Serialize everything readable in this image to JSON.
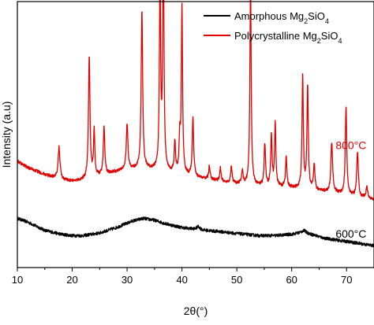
{
  "chart_data": {
    "type": "line",
    "xlabel": "2θ(°)",
    "ylabel": "Intensity (a.u)",
    "xlim": [
      10,
      75
    ],
    "xticks": [
      10,
      20,
      30,
      40,
      50,
      60,
      70
    ],
    "yticks_shown": false,
    "grid": false,
    "legend_position": "top-right",
    "legend": [
      {
        "prefix": "Amorphous Mg",
        "sub1": "2",
        "mid": "SiO",
        "sub2": "4",
        "color": "#000000"
      },
      {
        "prefix": "Polycrystalline Mg",
        "sub1": "2",
        "mid": "SiO",
        "sub2": "4",
        "color": "#e00000"
      }
    ],
    "annotations": [
      {
        "text": "800°C",
        "x": 68.0,
        "y": 0.445,
        "color": "#e00000"
      },
      {
        "text": "600°C",
        "x": 68.0,
        "y": 0.112,
        "color": "#000000"
      }
    ],
    "series": [
      {
        "name": "Amorphous Mg2SiO4",
        "color": "#000000",
        "baseline": [
          [
            10,
            0.185
          ],
          [
            12,
            0.17
          ],
          [
            15,
            0.14
          ],
          [
            18,
            0.125
          ],
          [
            20,
            0.12
          ],
          [
            22,
            0.12
          ],
          [
            25,
            0.13
          ],
          [
            28,
            0.15
          ],
          [
            31,
            0.175
          ],
          [
            33,
            0.185
          ],
          [
            35,
            0.178
          ],
          [
            37,
            0.165
          ],
          [
            40,
            0.15
          ],
          [
            42,
            0.145
          ],
          [
            44,
            0.14
          ],
          [
            47,
            0.135
          ],
          [
            50,
            0.128
          ],
          [
            54,
            0.12
          ],
          [
            57,
            0.12
          ],
          [
            60,
            0.125
          ],
          [
            62,
            0.132
          ],
          [
            64,
            0.122
          ],
          [
            66,
            0.11
          ],
          [
            70,
            0.098
          ],
          [
            75,
            0.082
          ]
        ],
        "peaks": [
          [
            43.0,
            0.012,
            0.35
          ],
          [
            62.3,
            0.008,
            0.5
          ]
        ]
      },
      {
        "name": "Polycrystalline Mg2SiO4",
        "color": "#e00000",
        "baseline": [
          [
            10,
            0.4
          ],
          [
            12,
            0.375
          ],
          [
            15,
            0.35
          ],
          [
            18,
            0.33
          ],
          [
            20,
            0.325
          ],
          [
            22,
            0.33
          ],
          [
            25,
            0.345
          ],
          [
            28,
            0.36
          ],
          [
            30,
            0.37
          ],
          [
            33,
            0.37
          ],
          [
            36,
            0.365
          ],
          [
            40,
            0.35
          ],
          [
            44,
            0.335
          ],
          [
            48,
            0.32
          ],
          [
            52,
            0.31
          ],
          [
            56,
            0.305
          ],
          [
            60,
            0.3
          ],
          [
            64,
            0.29
          ],
          [
            68,
            0.28
          ],
          [
            72,
            0.265
          ],
          [
            75,
            0.255
          ]
        ],
        "peaks": [
          [
            17.6,
            0.12,
            0.2
          ],
          [
            23.1,
            0.46,
            0.16
          ],
          [
            24.0,
            0.17,
            0.14
          ],
          [
            25.8,
            0.18,
            0.16
          ],
          [
            30.0,
            0.17,
            0.17
          ],
          [
            32.7,
            0.6,
            0.16
          ],
          [
            36.0,
            0.72,
            0.13
          ],
          [
            36.6,
            0.92,
            0.13
          ],
          [
            38.7,
            0.12,
            0.13
          ],
          [
            39.6,
            0.13,
            0.13
          ],
          [
            40.0,
            0.63,
            0.13
          ],
          [
            42.0,
            0.22,
            0.15
          ],
          [
            45.0,
            0.05,
            0.15
          ],
          [
            47.0,
            0.05,
            0.15
          ],
          [
            49.0,
            0.06,
            0.15
          ],
          [
            51.0,
            0.05,
            0.15
          ],
          [
            52.5,
            0.76,
            0.14
          ],
          [
            55.1,
            0.16,
            0.15
          ],
          [
            56.3,
            0.19,
            0.14
          ],
          [
            57.0,
            0.24,
            0.14
          ],
          [
            59.0,
            0.11,
            0.15
          ],
          [
            62.0,
            0.42,
            0.14
          ],
          [
            62.9,
            0.39,
            0.14
          ],
          [
            64.1,
            0.1,
            0.15
          ],
          [
            67.3,
            0.19,
            0.18
          ],
          [
            69.9,
            0.33,
            0.16
          ],
          [
            72.0,
            0.17,
            0.17
          ],
          [
            73.7,
            0.04,
            0.2
          ]
        ]
      }
    ]
  }
}
